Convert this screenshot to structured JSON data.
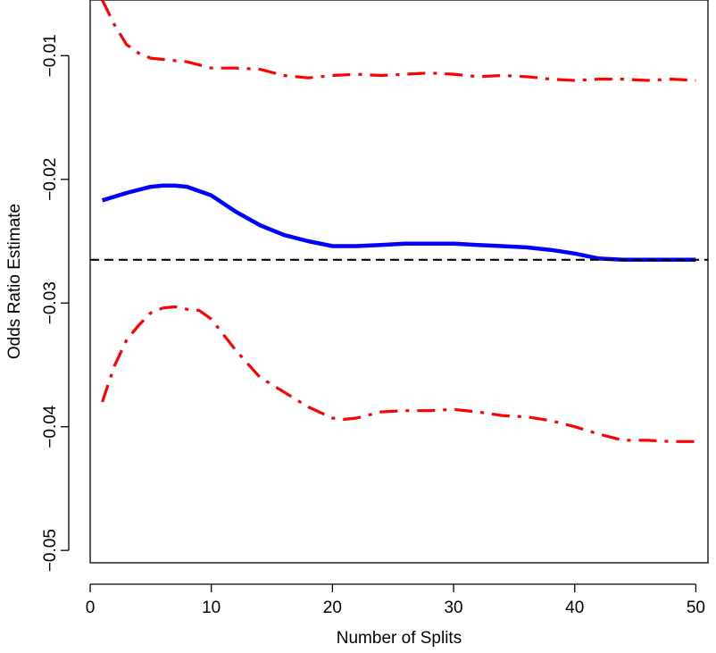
{
  "chart_data": {
    "type": "line",
    "title": "",
    "xlabel": "Number of Splits",
    "ylabel": "Odds Ratio Estimate",
    "xlim": [
      0,
      51
    ],
    "ylim": [
      -0.051,
      -0.0055
    ],
    "xticks": [
      0,
      10,
      20,
      30,
      40,
      50
    ],
    "xtick_labels": [
      "0",
      "10",
      "20",
      "30",
      "40",
      "50"
    ],
    "yticks": [
      -0.05,
      -0.04,
      -0.03,
      -0.02,
      -0.01
    ],
    "ytick_labels": [
      "−0.05",
      "−0.04",
      "−0.03",
      "−0.02",
      "−0.01"
    ],
    "grid": false,
    "legend": "none",
    "series": [
      {
        "style": "solid",
        "color": "#0000ff",
        "x": [
          1,
          3,
          5,
          6,
          7,
          8,
          10,
          12,
          14,
          16,
          18,
          20,
          22,
          24,
          26,
          28,
          30,
          32,
          34,
          36,
          38,
          40,
          42,
          44,
          46,
          48,
          50
        ],
        "y": [
          -0.0217,
          -0.0211,
          -0.0206,
          -0.0205,
          -0.0205,
          -0.0206,
          -0.0213,
          -0.0226,
          -0.0237,
          -0.0245,
          -0.025,
          -0.0254,
          -0.0254,
          -0.0253,
          -0.0252,
          -0.0252,
          -0.0252,
          -0.0253,
          -0.0254,
          -0.0255,
          -0.0257,
          -0.026,
          -0.0264,
          -0.0265,
          -0.0265,
          -0.0265,
          -0.0265
        ]
      },
      {
        "style": "dashdot",
        "color": "#ff0000",
        "x": [
          1,
          2,
          3,
          4,
          5,
          6,
          8,
          10,
          12,
          14,
          16,
          18,
          20,
          22,
          24,
          26,
          28,
          30,
          32,
          34,
          36,
          38,
          40,
          42,
          44,
          46,
          48,
          50
        ],
        "y": [
          -0.0055,
          -0.0075,
          -0.0091,
          -0.0098,
          -0.0102,
          -0.0103,
          -0.0105,
          -0.011,
          -0.011,
          -0.0111,
          -0.0116,
          -0.0118,
          -0.0116,
          -0.0115,
          -0.0116,
          -0.0115,
          -0.0114,
          -0.0115,
          -0.0117,
          -0.0116,
          -0.0117,
          -0.0119,
          -0.012,
          -0.0119,
          -0.0119,
          -0.012,
          -0.0119,
          -0.012
        ]
      },
      {
        "style": "dashdot",
        "color": "#ff0000",
        "x": [
          1,
          2,
          3,
          4,
          5,
          6,
          7,
          8,
          9,
          10,
          12,
          14,
          16,
          18,
          20,
          21,
          22,
          24,
          26,
          28,
          30,
          32,
          34,
          36,
          38,
          40,
          42,
          44,
          46,
          48,
          50
        ],
        "y": [
          -0.038,
          -0.0351,
          -0.033,
          -0.0318,
          -0.0308,
          -0.0304,
          -0.0303,
          -0.0305,
          -0.0306,
          -0.0313,
          -0.0338,
          -0.036,
          -0.0372,
          -0.0384,
          -0.0393,
          -0.0394,
          -0.0393,
          -0.0388,
          -0.0387,
          -0.0387,
          -0.0386,
          -0.0388,
          -0.0391,
          -0.0392,
          -0.0395,
          -0.04,
          -0.0406,
          -0.0411,
          -0.0411,
          -0.0412,
          -0.0412
        ]
      },
      {
        "style": "dashed",
        "color": "#000000",
        "x": [
          0,
          51
        ],
        "y": [
          -0.0265,
          -0.0265
        ]
      }
    ]
  }
}
